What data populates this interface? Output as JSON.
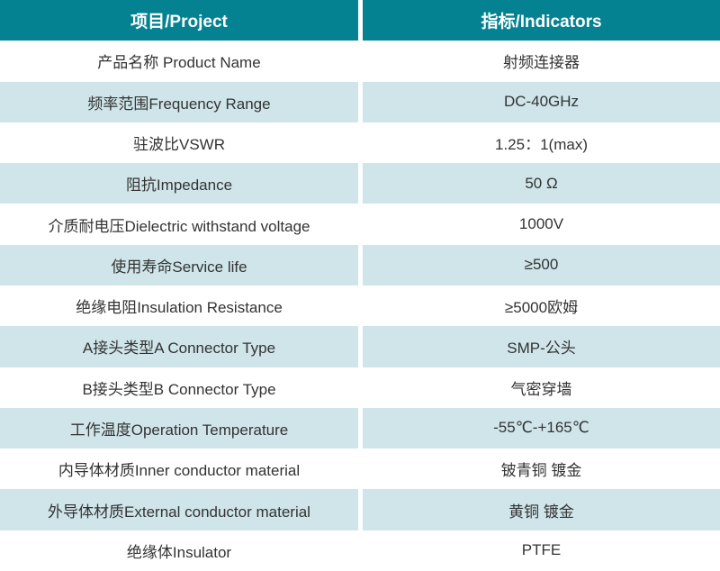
{
  "table": {
    "header": {
      "project_label": "项目/Project",
      "indicators_label": "指标/Indicators"
    },
    "rows": [
      {
        "project": "产品名称 Product Name",
        "indicator": "射频连接器"
      },
      {
        "project": "频率范围Frequency Range",
        "indicator": "DC-40GHz"
      },
      {
        "project": "驻波比VSWR",
        "indicator": "1.25：1(max)"
      },
      {
        "project": "阻抗Impedance",
        "indicator": "50 Ω"
      },
      {
        "project": "介质耐电压Dielectric withstand voltage",
        "indicator": "1000V"
      },
      {
        "project": "使用寿命Service life",
        "indicator": "≥500"
      },
      {
        "project": "绝缘电阻Insulation Resistance",
        "indicator": "≥5000欧姆"
      },
      {
        "project": "A接头类型A Connector Type",
        "indicator": "SMP-公头"
      },
      {
        "project": "B接头类型B Connector Type",
        "indicator": "气密穿墙"
      },
      {
        "project": "工作温度Operation Temperature",
        "indicator": "-55℃-+165℃"
      },
      {
        "project": "内导体材质Inner conductor material",
        "indicator": "铍青铜 镀金"
      },
      {
        "project": "外导体材质External conductor material",
        "indicator": "黄铜 镀金"
      },
      {
        "project": "绝缘体Insulator",
        "indicator": "PTFE"
      }
    ],
    "colors": {
      "header_bg": "#048291",
      "header_text": "#ffffff",
      "row_alt_bg": "#cfe5e9",
      "row_bg": "#ffffff",
      "text": "#333333",
      "divider": "#ffffff"
    }
  }
}
